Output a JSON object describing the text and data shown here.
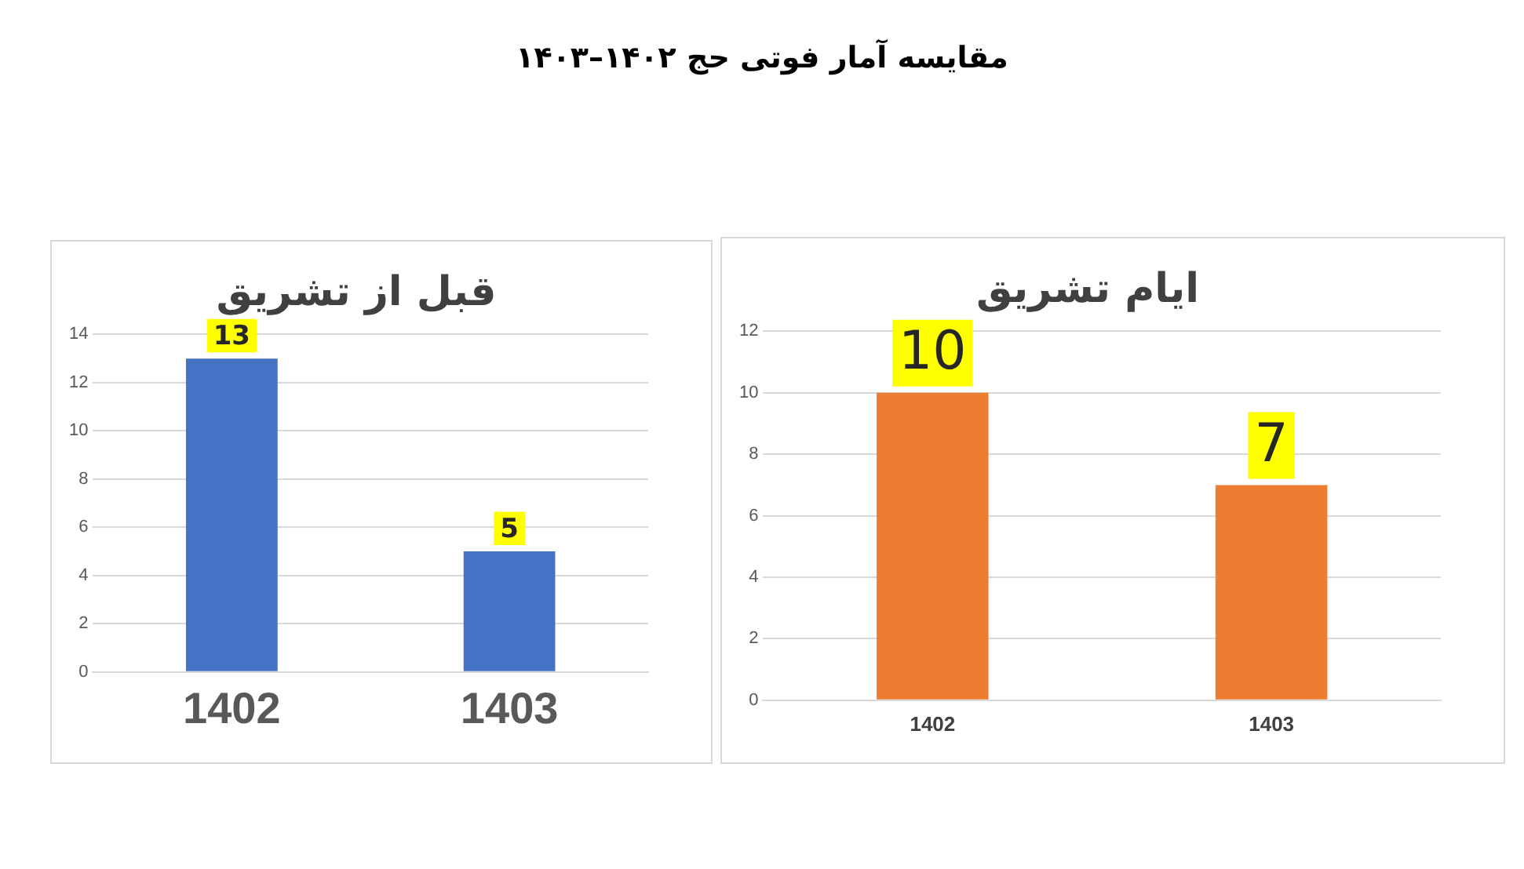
{
  "chart_data": [
    {
      "type": "bar",
      "title": "قبل از تشریق",
      "annotations": [
        "مقایسه آمار فوتی حج ۱۴۰۲–۱۴۰۳"
      ],
      "categories": [
        "1402",
        "1403"
      ],
      "values": [
        13,
        5
      ],
      "color": "#4472c4",
      "ylim": [
        0,
        14
      ],
      "yticks": [
        0,
        2,
        4,
        6,
        8,
        10,
        12,
        14
      ],
      "grid": "y",
      "data_labels": true,
      "legend": false
    },
    {
      "type": "bar",
      "title": "ایام تشریق",
      "categories": [
        "1402",
        "1403"
      ],
      "values": [
        10,
        7
      ],
      "color": "#ed7d31",
      "ylim": [
        0,
        12
      ],
      "yticks": [
        0,
        2,
        4,
        6,
        8,
        10,
        12
      ],
      "grid": "y",
      "data_labels": true,
      "legend": false
    }
  ]
}
